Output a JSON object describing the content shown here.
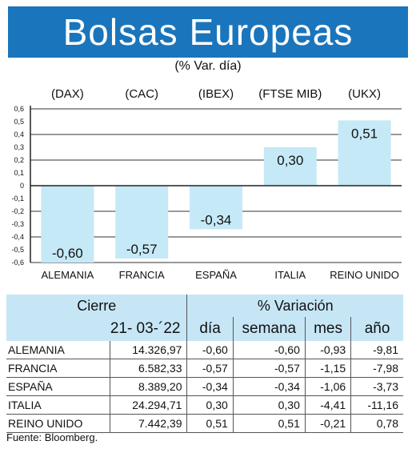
{
  "header": {
    "title": "Bolsas Europeas",
    "subtitle": "(% Var. día)"
  },
  "chart_data": {
    "type": "bar",
    "categories": [
      "ALEMANIA",
      "FRANCIA",
      "ESPAÑA",
      "ITALIA",
      "REINO UNIDO"
    ],
    "index_labels": [
      "(DAX)",
      "(CAC)",
      "(IBEX)",
      "(FTSE MIB)",
      "(UKX)"
    ],
    "values": [
      -0.6,
      -0.57,
      -0.34,
      0.3,
      0.51
    ],
    "value_labels": [
      "-0,60",
      "-0,57",
      "-0,34",
      "0,30",
      "0,51"
    ],
    "ylim": [
      -0.6,
      0.6
    ],
    "y_ticks": [
      "0,6",
      "0,5",
      "0,4",
      "0,3",
      "0,2",
      "0,1",
      "0",
      "-0,1",
      "-0,2",
      "-0,3",
      "-0,4",
      "-0,5",
      "-0,6"
    ],
    "grid": true,
    "bar_color": "#c6e9f7"
  },
  "table": {
    "group_headers": [
      "Cierre",
      "% Variación"
    ],
    "columns": [
      "21- 03-´22",
      "día",
      "semana",
      "mes",
      "año"
    ],
    "rows": [
      {
        "country": "ALEMANIA",
        "cierre": "14.326,97",
        "dia": "-0,60",
        "semana": "-0,60",
        "mes": "-0,93",
        "ano": "-9,81"
      },
      {
        "country": "FRANCIA",
        "cierre": "6.582,33",
        "dia": "-0,57",
        "semana": "-0,57",
        "mes": "-1,15",
        "ano": "-7,98"
      },
      {
        "country": "ESPAÑA",
        "cierre": "8.389,20",
        "dia": "-0,34",
        "semana": "-0,34",
        "mes": "-1,06",
        "ano": "-3,73"
      },
      {
        "country": "ITALIA",
        "cierre": "24.294,71",
        "dia": "0,30",
        "semana": "0,30",
        "mes": "-4,41",
        "ano": "-11,16"
      },
      {
        "country": "REINO UNIDO",
        "cierre": "7.442,39",
        "dia": "0,51",
        "semana": "0,51",
        "mes": "-0,21",
        "ano": "0,78"
      }
    ]
  },
  "source": "Fuente: Bloomberg.",
  "colors": {
    "banner": "#1a75bc",
    "table_header": "#c6e6f6"
  }
}
